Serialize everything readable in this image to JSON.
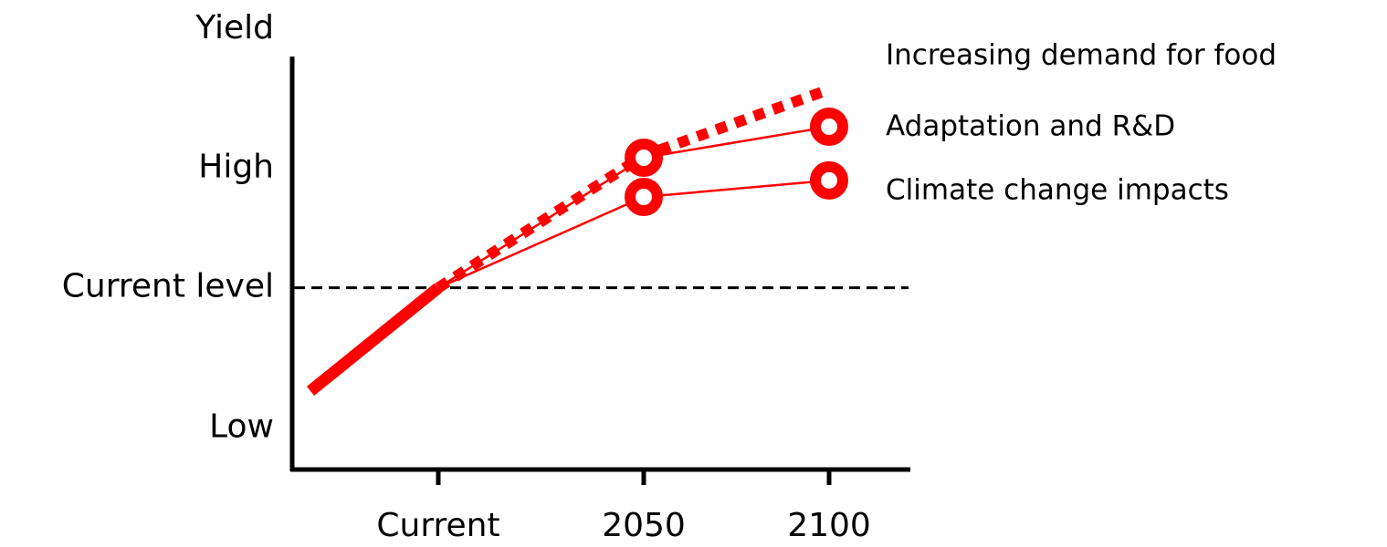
{
  "chart_data": {
    "type": "line",
    "y_label": "Yield",
    "categories": [
      null,
      "Current",
      "2050",
      "2100"
    ],
    "ylim": [
      0,
      100
    ],
    "yticks": [
      {
        "value": 10,
        "label": "Low"
      },
      {
        "value": 44,
        "label": "Current level"
      },
      {
        "value": 73,
        "label": "High"
      }
    ],
    "hline": 44,
    "series": [
      {
        "color": "#ff0000",
        "style": "thick",
        "values": [
          19,
          44,
          null,
          null
        ]
      },
      {
        "name": "Increasing demand for food",
        "color": "#ff0000",
        "style": "dotted",
        "values": [
          null,
          44,
          76,
          92
        ]
      },
      {
        "name": "Adaptation and R&D",
        "color": "#ff0000",
        "style": "marker",
        "values": [
          null,
          44,
          75.5,
          83
        ]
      },
      {
        "name": "Climate change impacts",
        "color": "#ff0000",
        "style": "marker",
        "values": [
          null,
          44,
          66,
          70
        ]
      }
    ]
  }
}
